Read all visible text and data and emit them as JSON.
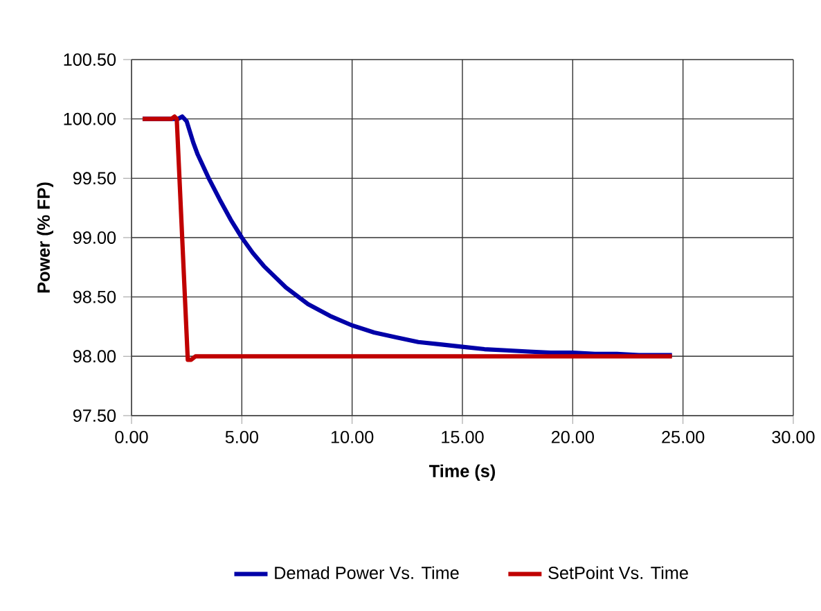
{
  "chart_data": {
    "type": "line",
    "xlabel": "Time (s)",
    "ylabel": "Power (% FP)",
    "xlim": [
      0,
      30
    ],
    "ylim": [
      97.5,
      100.5
    ],
    "xticks": [
      {
        "value": 0,
        "label": "0.00"
      },
      {
        "value": 5,
        "label": "5.00"
      },
      {
        "value": 10,
        "label": "10.00"
      },
      {
        "value": 15,
        "label": "15.00"
      },
      {
        "value": 20,
        "label": "20.00"
      },
      {
        "value": 25,
        "label": "25.00"
      },
      {
        "value": 30,
        "label": "30.00"
      }
    ],
    "yticks": [
      {
        "value": 97.5,
        "label": "97.50"
      },
      {
        "value": 98,
        "label": "98.00"
      },
      {
        "value": 98.5,
        "label": "98.50"
      },
      {
        "value": 99,
        "label": "99.00"
      },
      {
        "value": 99.5,
        "label": "99.50"
      },
      {
        "value": 100,
        "label": "100.00"
      },
      {
        "value": 100.5,
        "label": "100.50"
      }
    ],
    "grid": true,
    "legend": "bottom",
    "marker": "none",
    "line_style": "solid",
    "series": [
      {
        "name": "Demad Power Vs. Time",
        "color": "#0000a8",
        "x": [
          0.5,
          2.1,
          2.3,
          2.5,
          2.8,
          3.0,
          3.5,
          4.0,
          4.5,
          5.0,
          5.5,
          6.0,
          7.0,
          8.0,
          9.0,
          10.0,
          11.0,
          12.0,
          13.0,
          14.0,
          15.0,
          16.0,
          17.0,
          18.0,
          19.0,
          20.0,
          21.0,
          22.0,
          23.0,
          24.5
        ],
        "values": [
          100.0,
          100.0,
          100.02,
          99.98,
          99.8,
          99.7,
          99.5,
          99.32,
          99.15,
          99.0,
          98.87,
          98.76,
          98.58,
          98.44,
          98.34,
          98.26,
          98.2,
          98.16,
          98.12,
          98.1,
          98.08,
          98.06,
          98.05,
          98.04,
          98.03,
          98.03,
          98.02,
          98.02,
          98.01,
          98.01
        ]
      },
      {
        "name": "SetPoint Vs. Time",
        "color": "#c00000",
        "x": [
          0.5,
          1.8,
          1.95,
          2.05,
          2.55,
          2.7,
          2.9,
          24.5
        ],
        "values": [
          100.0,
          100.0,
          100.02,
          100.0,
          97.97,
          97.97,
          98.0,
          98.0
        ]
      }
    ]
  }
}
